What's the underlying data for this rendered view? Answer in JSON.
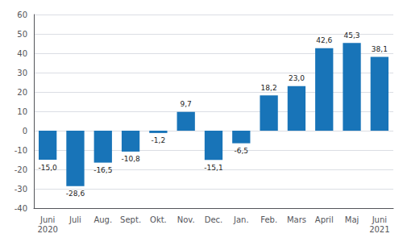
{
  "chart_data": {
    "type": "bar",
    "categories": [
      "Juni\n2020",
      "Juli",
      "Aug.",
      "Sept.",
      "Okt.",
      "Nov.",
      "Dec.",
      "Jan.",
      "Feb.",
      "Mars",
      "April",
      "Maj",
      "Juni\n2021"
    ],
    "values": [
      -15.0,
      -28.6,
      -16.5,
      -10.8,
      -1.2,
      9.7,
      -15.1,
      -6.5,
      18.2,
      23.0,
      42.6,
      45.3,
      38.1
    ],
    "value_labels": [
      "-15,0",
      "-28,6",
      "-16,5",
      "-10,8",
      "-1,2",
      "9,7",
      "-15,1",
      "-6,5",
      "18,2",
      "23,0",
      "42,6",
      "45,3",
      "38,1"
    ],
    "color": "#1874b8",
    "ylim": [
      -40,
      60
    ],
    "yticks": [
      -40,
      -30,
      -20,
      -10,
      0,
      10,
      20,
      30,
      40,
      50,
      60
    ],
    "grid": true,
    "data_labels": true
  }
}
